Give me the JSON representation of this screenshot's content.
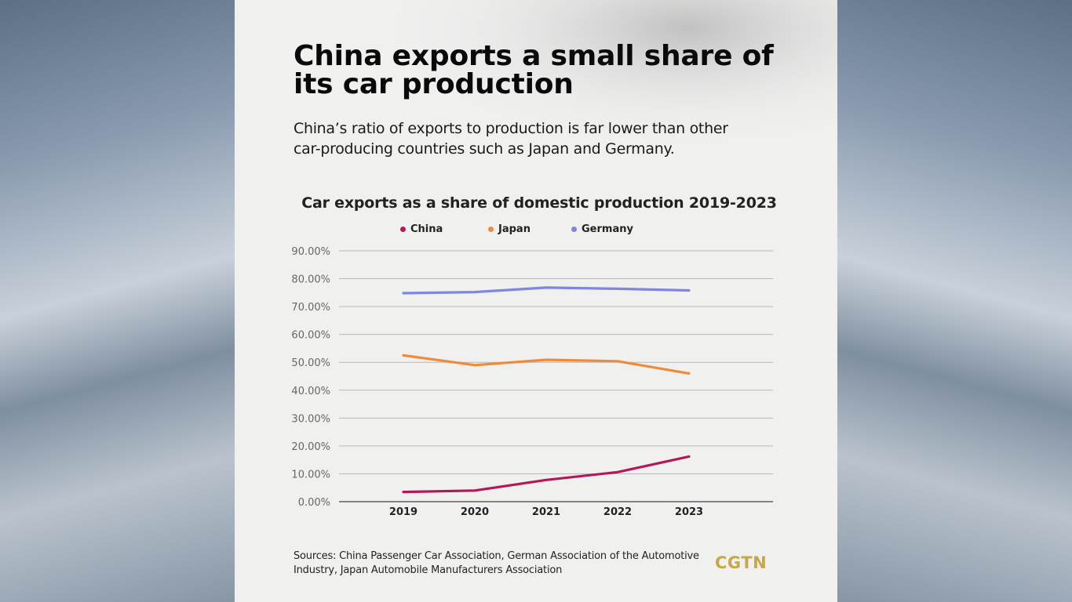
{
  "headline": "China exports a small share of its car production",
  "subheadline": "China’s ratio of exports to production is far lower than other car-producing countries such as Japan and Germany.",
  "sources": "Sources: China Passenger Car Association, German Association of the Automotive Industry, Japan Automobile Manufacturers Association",
  "logo": "CGTN",
  "chart_data": {
    "type": "line",
    "title": "Car exports as a share of domestic production 2019-2023",
    "x": [
      "2019",
      "2020",
      "2021",
      "2022",
      "2023"
    ],
    "ylim": [
      0,
      90
    ],
    "yticks": [
      "0.00%",
      "10.00%",
      "20.00%",
      "30.00%",
      "40.00%",
      "50.00%",
      "60.00%",
      "70.00%",
      "80.00%",
      "90.00%"
    ],
    "grid": true,
    "legend": "top",
    "series": [
      {
        "name": "China",
        "color": "#b3195a",
        "values": [
          3.5,
          4.0,
          7.8,
          10.6,
          16.2
        ]
      },
      {
        "name": "Japan",
        "color": "#f08a3a",
        "values": [
          52.5,
          49.0,
          50.9,
          50.4,
          46.0
        ]
      },
      {
        "name": "Germany",
        "color": "#7f86e0",
        "values": [
          74.8,
          75.2,
          76.8,
          76.4,
          75.8
        ]
      }
    ]
  }
}
